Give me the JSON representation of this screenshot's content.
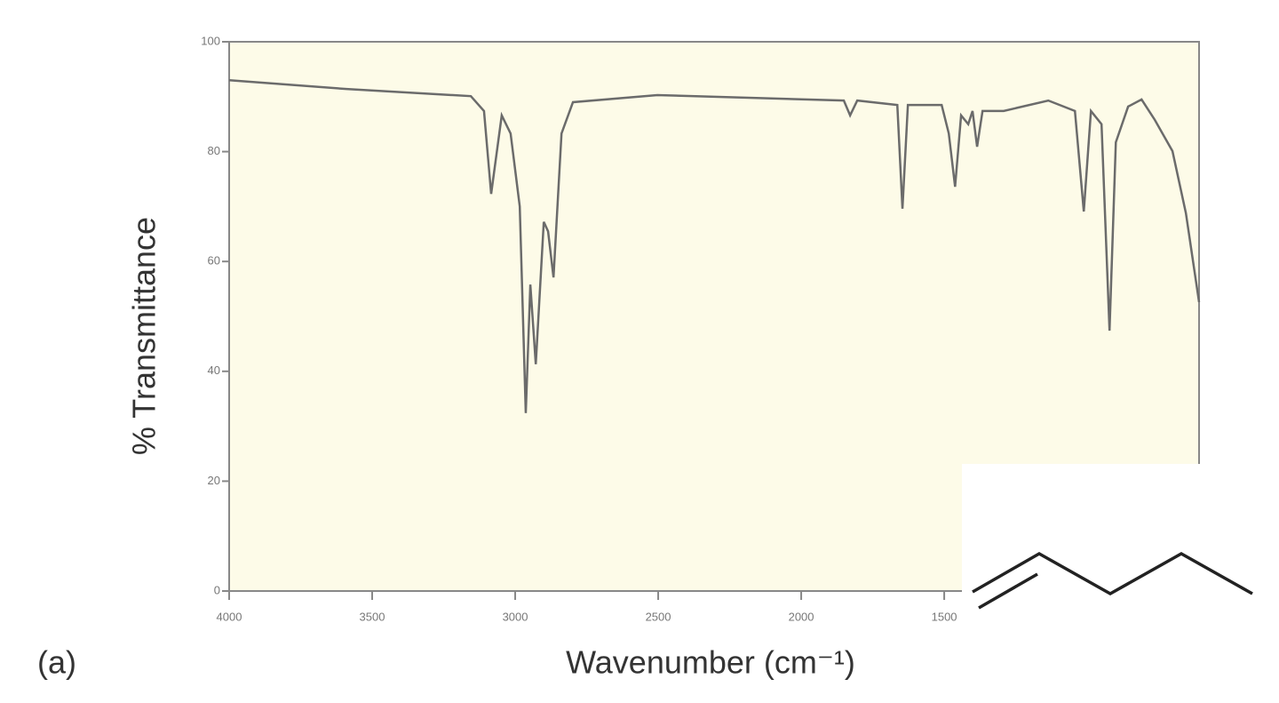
{
  "chart_data": {
    "type": "line",
    "annotation": "(a)",
    "xlabel": "Wavenumber (cm⁻¹)",
    "ylabel": "% Transmittance",
    "x": [
      4000,
      3590,
      3155,
      3109,
      3084,
      3047,
      3016,
      2984,
      2963,
      2947,
      2928,
      2900,
      2885,
      2866,
      2838,
      2798,
      2503,
      1851,
      1829,
      1804,
      1664,
      1646,
      1627,
      1509,
      1484,
      1462,
      1441,
      1416,
      1401,
      1385,
      1366,
      1292,
      1136,
      1043,
      1012,
      987,
      950,
      922,
      900,
      857,
      810,
      764,
      702,
      655,
      609
    ],
    "series": [
      {
        "color": "#6b6b6b",
        "values": [
          93,
          91.4,
          90.1,
          87.4,
          72.3,
          86.6,
          83.3,
          70,
          32.4,
          55.8,
          41.3,
          67.2,
          65.5,
          57.1,
          83.3,
          89,
          90.3,
          89.3,
          86.6,
          89.3,
          88.5,
          69.6,
          88.5,
          88.5,
          83.3,
          73.6,
          86.6,
          85,
          87.4,
          80.9,
          87.4,
          87.4,
          89.3,
          87.4,
          69.1,
          87.4,
          85,
          47.4,
          81.7,
          88.2,
          89.5,
          85.8,
          80.1,
          68.8,
          52.6
        ]
      }
    ],
    "xlim": [
      4000,
      609
    ],
    "xticks": [
      4000,
      3500,
      3000,
      2500,
      2000,
      1500
    ],
    "ylim": [
      0,
      100
    ],
    "yticks": [
      0,
      20,
      40,
      60,
      80,
      100
    ],
    "background": "#fdfbe8"
  }
}
